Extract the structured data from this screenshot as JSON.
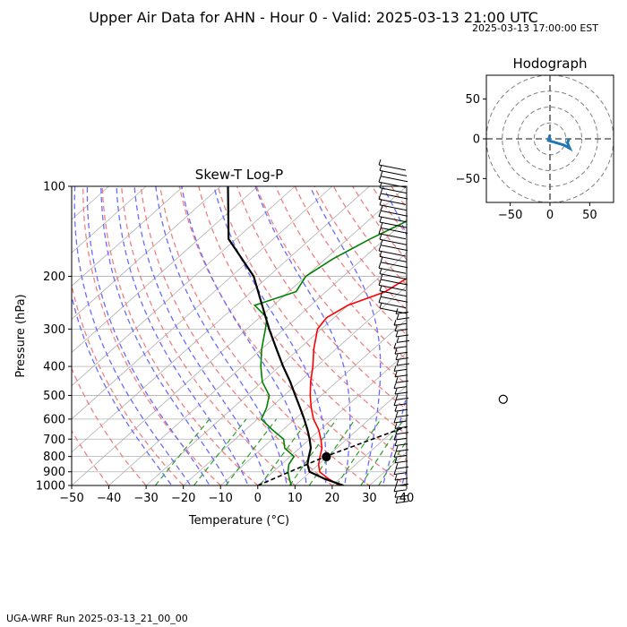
{
  "header": {
    "title": "Upper Air Data for AHN - Hour 0 - Valid: 2025-03-13 21:00 UTC",
    "local_time": "2025-03-13 17:00:00 EST"
  },
  "footer": {
    "run_label": "UGA-WRF Run 2025-03-13_21_00_00"
  },
  "chart_data": [
    {
      "type": "line",
      "title": "Skew-T Log-P",
      "xlabel": "Temperature (°C)",
      "ylabel": "Pressure (hPa)",
      "xlim": [
        -50,
        40
      ],
      "ylim": [
        1000,
        100
      ],
      "y_scale": "log",
      "x_ticks": [
        "−50",
        "−40",
        "−30",
        "−20",
        "−10",
        "0",
        "10",
        "20",
        "30",
        "40"
      ],
      "y_ticks": [
        "100",
        "200",
        "300",
        "400",
        "500",
        "600",
        "700",
        "800",
        "900",
        "1000"
      ],
      "grid": true,
      "series": [
        {
          "kind": "temperature",
          "color": "#ff0000",
          "points": [
            [
              22,
              1000
            ],
            [
              17,
              950
            ],
            [
              12.5,
              900
            ],
            [
              10,
              850
            ],
            [
              8,
              800
            ],
            [
              6,
              750
            ],
            [
              3,
              700
            ],
            [
              -0.5,
              650
            ],
            [
              -5,
              600
            ],
            [
              -9,
              550
            ],
            [
              -13,
              500
            ],
            [
              -17,
              450
            ],
            [
              -21,
              400
            ],
            [
              -26,
              350
            ],
            [
              -31,
              300
            ],
            [
              -32,
              275
            ],
            [
              -30,
              250
            ],
            [
              -24,
              225
            ],
            [
              -22,
              200
            ],
            [
              -24,
              175
            ],
            [
              -27,
              150
            ],
            [
              -28,
              125
            ],
            [
              -27,
              100
            ]
          ]
        },
        {
          "kind": "dewpoint",
          "color": "#008000",
          "points": [
            [
              9,
              1000
            ],
            [
              6.5,
              950
            ],
            [
              4,
              900
            ],
            [
              2,
              850
            ],
            [
              1,
              800
            ],
            [
              -4,
              750
            ],
            [
              -7,
              700
            ],
            [
              -13,
              650
            ],
            [
              -19,
              600
            ],
            [
              -21,
              550
            ],
            [
              -24,
              500
            ],
            [
              -30,
              450
            ],
            [
              -35,
              400
            ],
            [
              -40,
              350
            ],
            [
              -45,
              300
            ],
            [
              -48,
              275
            ],
            [
              -55,
              250
            ],
            [
              -48,
              225
            ],
            [
              -50,
              200
            ],
            [
              -48,
              175
            ],
            [
              -44,
              150
            ],
            [
              -38,
              125
            ],
            [
              -32,
              100
            ]
          ]
        },
        {
          "kind": "parcel_profile",
          "color": "#000000",
          "points": [
            [
              23,
              1000
            ],
            [
              16,
              950
            ],
            [
              9.8,
              900
            ],
            [
              7,
              850
            ],
            [
              5,
              800
            ],
            [
              3,
              750
            ],
            [
              0,
              700
            ],
            [
              -3.5,
              650
            ],
            [
              -7.5,
              600
            ],
            [
              -12,
              550
            ],
            [
              -17,
              500
            ],
            [
              -22.5,
              450
            ],
            [
              -29,
              400
            ],
            [
              -36,
              350
            ],
            [
              -44,
              300
            ],
            [
              -53,
              250
            ],
            [
              -64,
              200
            ],
            [
              -82,
              150
            ],
            [
              -98,
              100
            ]
          ]
        },
        {
          "kind": "lcl_line",
          "color": "#000000",
          "style": "dashed",
          "points": [
            [
              0,
              1000
            ],
            [
              9.5,
              800
            ],
            [
              21,
              650
            ],
            [
              38,
              500
            ],
            [
              57,
              350
            ],
            [
              78,
              200
            ]
          ]
        }
      ],
      "markers": [
        {
          "label": "LCL",
          "fill": "#000000",
          "point": [
            9.8,
            802
          ]
        },
        {
          "label": "EL",
          "fill": "#ffffff",
          "point": [
            40,
            515
          ]
        }
      ],
      "wind_barb_column": "right"
    },
    {
      "type": "line",
      "title": "Hodograph",
      "xlim": [
        -80,
        80
      ],
      "ylim": [
        -80,
        80
      ],
      "x_ticks": [
        "−50",
        "0",
        "50"
      ],
      "y_ticks": [
        "50",
        "0",
        "−50"
      ],
      "rings": [
        20,
        40,
        60,
        80
      ],
      "series": [
        {
          "color": "#1f77b4",
          "points": [
            [
              0,
              5
            ],
            [
              -2,
              -2
            ],
            [
              8,
              -5
            ],
            [
              18,
              -8
            ],
            [
              25,
              -12
            ],
            [
              22,
              -5
            ],
            [
              24,
              0
            ]
          ]
        }
      ]
    }
  ]
}
